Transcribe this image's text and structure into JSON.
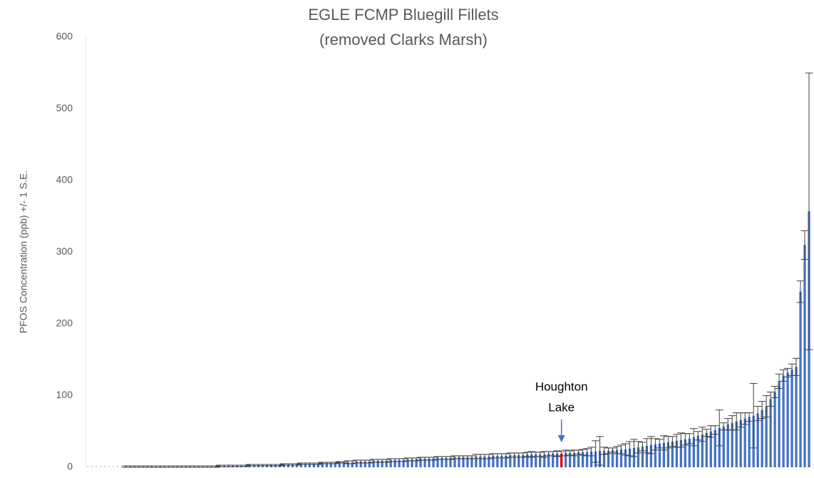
{
  "chart_data": {
    "type": "bar",
    "title": "EGLE FCMP Bluegill Fillets",
    "subtitle": "(removed Clarks Marsh)",
    "ylabel": "PFOS Concentration (ppb) +/- 1 S.E.",
    "annotation": {
      "lines": [
        "Houghton",
        "Lake"
      ],
      "index": 111,
      "color": "#4472c4"
    },
    "highlight": {
      "indices": [
        15,
        111
      ],
      "color": "#e00000"
    },
    "categories": [
      null,
      null,
      null,
      null,
      null,
      null,
      null,
      null,
      null,
      null,
      null,
      null,
      null,
      null,
      null,
      null,
      null,
      null,
      null,
      null,
      null,
      null,
      null,
      null,
      null,
      null,
      null,
      null,
      null,
      null,
      null,
      null,
      null,
      null,
      null,
      null,
      null,
      null,
      null,
      null,
      null,
      null,
      null,
      null,
      null,
      null,
      null,
      null,
      null,
      null,
      null,
      null,
      null,
      null,
      null,
      null,
      null,
      null,
      null,
      null,
      null,
      null,
      null,
      null,
      null,
      null,
      null,
      null,
      null,
      null,
      null,
      null,
      null,
      null,
      null,
      null,
      null,
      null,
      null,
      null,
      null,
      null,
      null,
      null,
      null,
      null,
      null,
      null,
      null,
      null,
      null,
      null,
      null,
      null,
      null,
      null,
      null,
      null,
      null,
      null,
      null,
      null,
      null,
      null,
      null,
      null,
      null,
      null,
      null,
      null,
      null,
      null,
      null,
      null,
      null,
      null,
      null,
      null,
      null,
      null,
      null,
      null,
      null,
      null,
      null,
      null,
      null,
      null,
      null,
      null,
      null,
      null,
      null,
      null,
      null,
      null,
      null,
      null,
      null,
      null,
      null,
      null,
      null,
      null,
      null,
      null,
      null,
      null,
      null,
      null,
      null,
      null,
      null,
      null,
      null,
      null,
      null,
      null,
      null,
      null,
      null,
      null,
      null,
      null,
      null,
      null,
      null,
      null,
      null,
      null
    ],
    "series": [
      {
        "color": "#4472c4",
        "error_color": "#404040",
        "values": [
          0,
          0,
          0,
          0,
          0,
          0,
          0,
          0,
          0,
          1,
          1,
          1,
          1,
          1,
          1,
          1,
          1,
          1,
          1,
          1,
          1,
          1,
          1,
          1,
          1,
          1,
          1,
          1,
          1,
          1,
          1,
          2,
          2,
          2,
          2,
          2,
          2,
          2,
          3,
          3,
          3,
          3,
          3,
          3,
          3,
          3,
          4,
          4,
          4,
          4,
          5,
          5,
          5,
          5,
          5,
          6,
          6,
          6,
          6,
          7,
          7,
          7,
          7,
          8,
          8,
          8,
          8,
          9,
          9,
          9,
          9,
          10,
          10,
          10,
          10,
          11,
          11,
          11,
          12,
          12,
          12,
          12,
          13,
          13,
          13,
          13,
          14,
          14,
          14,
          14,
          14,
          15,
          15,
          15,
          15,
          16,
          16,
          16,
          16,
          17,
          17,
          17,
          17,
          18,
          18,
          18,
          18,
          18,
          19,
          19,
          19,
          19,
          20,
          20,
          20,
          21,
          21,
          21,
          22,
          22,
          23,
          23,
          23,
          24,
          24,
          25,
          25,
          26,
          27,
          28,
          29,
          30,
          31,
          32,
          33,
          34,
          35,
          36,
          37,
          38,
          39,
          40,
          42,
          44,
          46,
          48,
          50,
          52,
          55,
          57,
          60,
          62,
          64,
          66,
          68,
          70,
          72,
          75,
          80,
          85,
          95,
          105,
          120,
          128,
          132,
          136,
          140,
          245,
          310,
          357
        ],
        "error": [
          0,
          0,
          0,
          0,
          0,
          0,
          0,
          0,
          0,
          1,
          1,
          1,
          1,
          1,
          1,
          1,
          1,
          1,
          1,
          1,
          1,
          1,
          1,
          1,
          1,
          1,
          1,
          1,
          1,
          1,
          1,
          1,
          1,
          1,
          1,
          1,
          1,
          1,
          1,
          1,
          1,
          1,
          1,
          1,
          1,
          1,
          1,
          1,
          1,
          1,
          1,
          1,
          1,
          1,
          1,
          1,
          1,
          1,
          1,
          1,
          1,
          2,
          2,
          2,
          2,
          2,
          2,
          2,
          2,
          2,
          2,
          2,
          2,
          2,
          2,
          2,
          2,
          2,
          2,
          2,
          2,
          2,
          2,
          2,
          2,
          2,
          2,
          2,
          2,
          2,
          2,
          3,
          3,
          3,
          3,
          3,
          3,
          3,
          3,
          3,
          3,
          3,
          3,
          3,
          4,
          3,
          3,
          4,
          3,
          3,
          4,
          3,
          4,
          3,
          4,
          3,
          4,
          5,
          6,
          15,
          20,
          5,
          4,
          3,
          5,
          6,
          8,
          10,
          12,
          8,
          6,
          10,
          12,
          8,
          6,
          10,
          8,
          7,
          9,
          10,
          8,
          7,
          12,
          6,
          10,
          5,
          8,
          6,
          25,
          5,
          8,
          10,
          12,
          10,
          8,
          6,
          45,
          10,
          12,
          15,
          10,
          8,
          10,
          8,
          6,
          8,
          12,
          15,
          20,
          193
        ]
      }
    ],
    "ylim": [
      0,
      600
    ],
    "yticks": [
      0,
      100,
      200,
      300,
      400,
      500,
      600
    ],
    "grid": false
  }
}
